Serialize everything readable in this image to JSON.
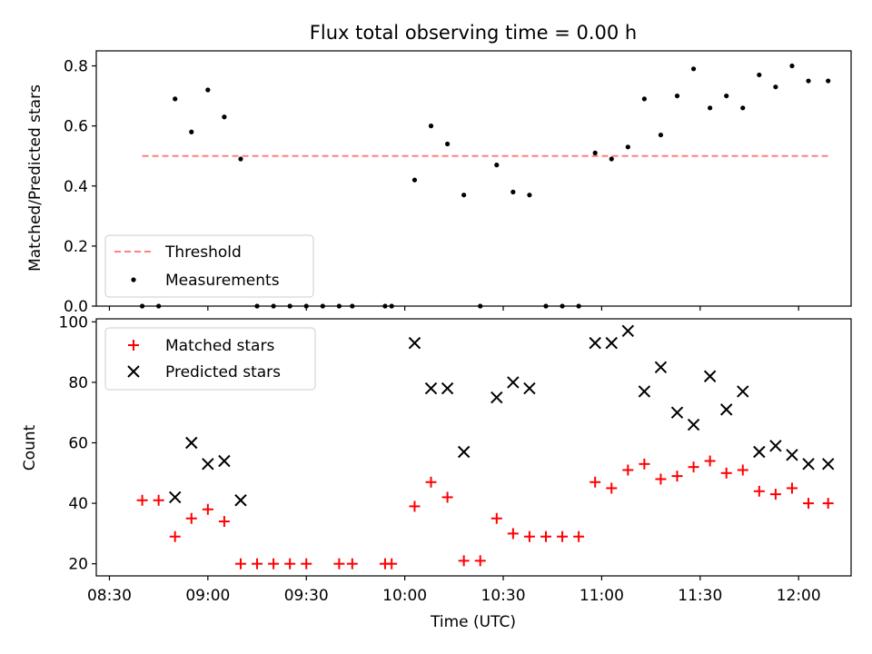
{
  "chart_data": [
    {
      "type": "scatter",
      "title": "Flux total observing time = 0.00 h",
      "xlabel": "",
      "ylabel": "Matched/Predicted stars",
      "ylim": [
        0,
        0.85
      ],
      "yticks": [
        "0.0",
        "0.2",
        "0.4",
        "0.6",
        "0.8"
      ],
      "yticks_values": [
        0,
        0.2,
        0.4,
        0.6,
        0.8
      ],
      "xlim_minutes": [
        506,
        736
      ],
      "legend_placement": "lower-left",
      "threshold": {
        "name": "Threshold",
        "value": 0.5,
        "x_start": "08:40",
        "x_end": "12:09",
        "color": "#ff7f7f"
      },
      "series": [
        {
          "name": "Measurements",
          "color": "#000000",
          "x": [
            "08:40",
            "08:45",
            "08:50",
            "08:55",
            "09:00",
            "09:05",
            "09:10",
            "09:15",
            "09:20",
            "09:25",
            "09:30",
            "09:35",
            "09:40",
            "09:44",
            "09:54",
            "09:56",
            "10:03",
            "10:08",
            "10:13",
            "10:18",
            "10:23",
            "10:28",
            "10:33",
            "10:38",
            "10:43",
            "10:48",
            "10:53",
            "10:58",
            "11:03",
            "11:08",
            "11:13",
            "11:18",
            "11:23",
            "11:28",
            "11:33",
            "11:38",
            "11:43",
            "11:48",
            "11:53",
            "11:58",
            "12:03",
            "12:09"
          ],
          "y": [
            0,
            0,
            0.69,
            0.58,
            0.72,
            0.63,
            0.49,
            0,
            0,
            0,
            0,
            0,
            0,
            0,
            0,
            0,
            0.42,
            0.6,
            0.54,
            0.37,
            0,
            0.47,
            0.38,
            0.37,
            0,
            0,
            0,
            0.51,
            0.49,
            0.53,
            0.69,
            0.57,
            0.7,
            0.79,
            0.66,
            0.7,
            0.66,
            0.77,
            0.73,
            0.8,
            0.75,
            0.75
          ]
        }
      ]
    },
    {
      "type": "scatter",
      "xlabel": "Time (UTC)",
      "ylabel": "Count",
      "ylim": [
        16,
        101
      ],
      "yticks": [
        "20",
        "40",
        "60",
        "80",
        "100"
      ],
      "yticks_values": [
        20,
        40,
        60,
        80,
        100
      ],
      "xticks": [
        "08:30",
        "09:00",
        "09:30",
        "10:00",
        "10:30",
        "11:00",
        "11:30",
        "12:00"
      ],
      "xticks_minutes": [
        510,
        540,
        570,
        600,
        630,
        660,
        690,
        720
      ],
      "xlim_minutes": [
        506,
        736
      ],
      "legend_placement": "upper-left",
      "series": [
        {
          "name": "Matched stars",
          "color": "#ff0000",
          "marker": "plus",
          "x": [
            "08:40",
            "08:45",
            "08:50",
            "08:55",
            "09:00",
            "09:05",
            "09:10",
            "09:15",
            "09:20",
            "09:25",
            "09:30",
            "09:40",
            "09:44",
            "09:54",
            "09:56",
            "10:03",
            "10:08",
            "10:13",
            "10:18",
            "10:23",
            "10:28",
            "10:33",
            "10:38",
            "10:43",
            "10:48",
            "10:53",
            "10:58",
            "11:03",
            "11:08",
            "11:13",
            "11:18",
            "11:23",
            "11:28",
            "11:33",
            "11:38",
            "11:43",
            "11:48",
            "11:53",
            "11:58",
            "12:03",
            "12:09"
          ],
          "y": [
            41,
            41,
            29,
            35,
            38,
            34,
            20,
            20,
            20,
            20,
            20,
            20,
            20,
            20,
            20,
            39,
            47,
            42,
            21,
            21,
            35,
            30,
            29,
            29,
            29,
            29,
            47,
            45,
            51,
            53,
            48,
            49,
            52,
            54,
            50,
            51,
            44,
            43,
            45,
            40,
            40
          ]
        },
        {
          "name": "Predicted stars",
          "color": "#000000",
          "marker": "x",
          "x": [
            "08:50",
            "08:55",
            "09:00",
            "09:05",
            "09:10",
            "10:03",
            "10:08",
            "10:13",
            "10:18",
            "10:28",
            "10:33",
            "10:38",
            "10:58",
            "11:03",
            "11:08",
            "11:13",
            "11:18",
            "11:23",
            "11:28",
            "11:33",
            "11:38",
            "11:43",
            "11:48",
            "11:53",
            "11:58",
            "12:03",
            "12:09"
          ],
          "y": [
            42,
            60,
            53,
            54,
            41,
            93,
            78,
            78,
            57,
            75,
            80,
            78,
            93,
            93,
            97,
            77,
            85,
            70,
            66,
            82,
            71,
            77,
            57,
            59,
            56,
            53,
            53
          ]
        }
      ]
    }
  ]
}
